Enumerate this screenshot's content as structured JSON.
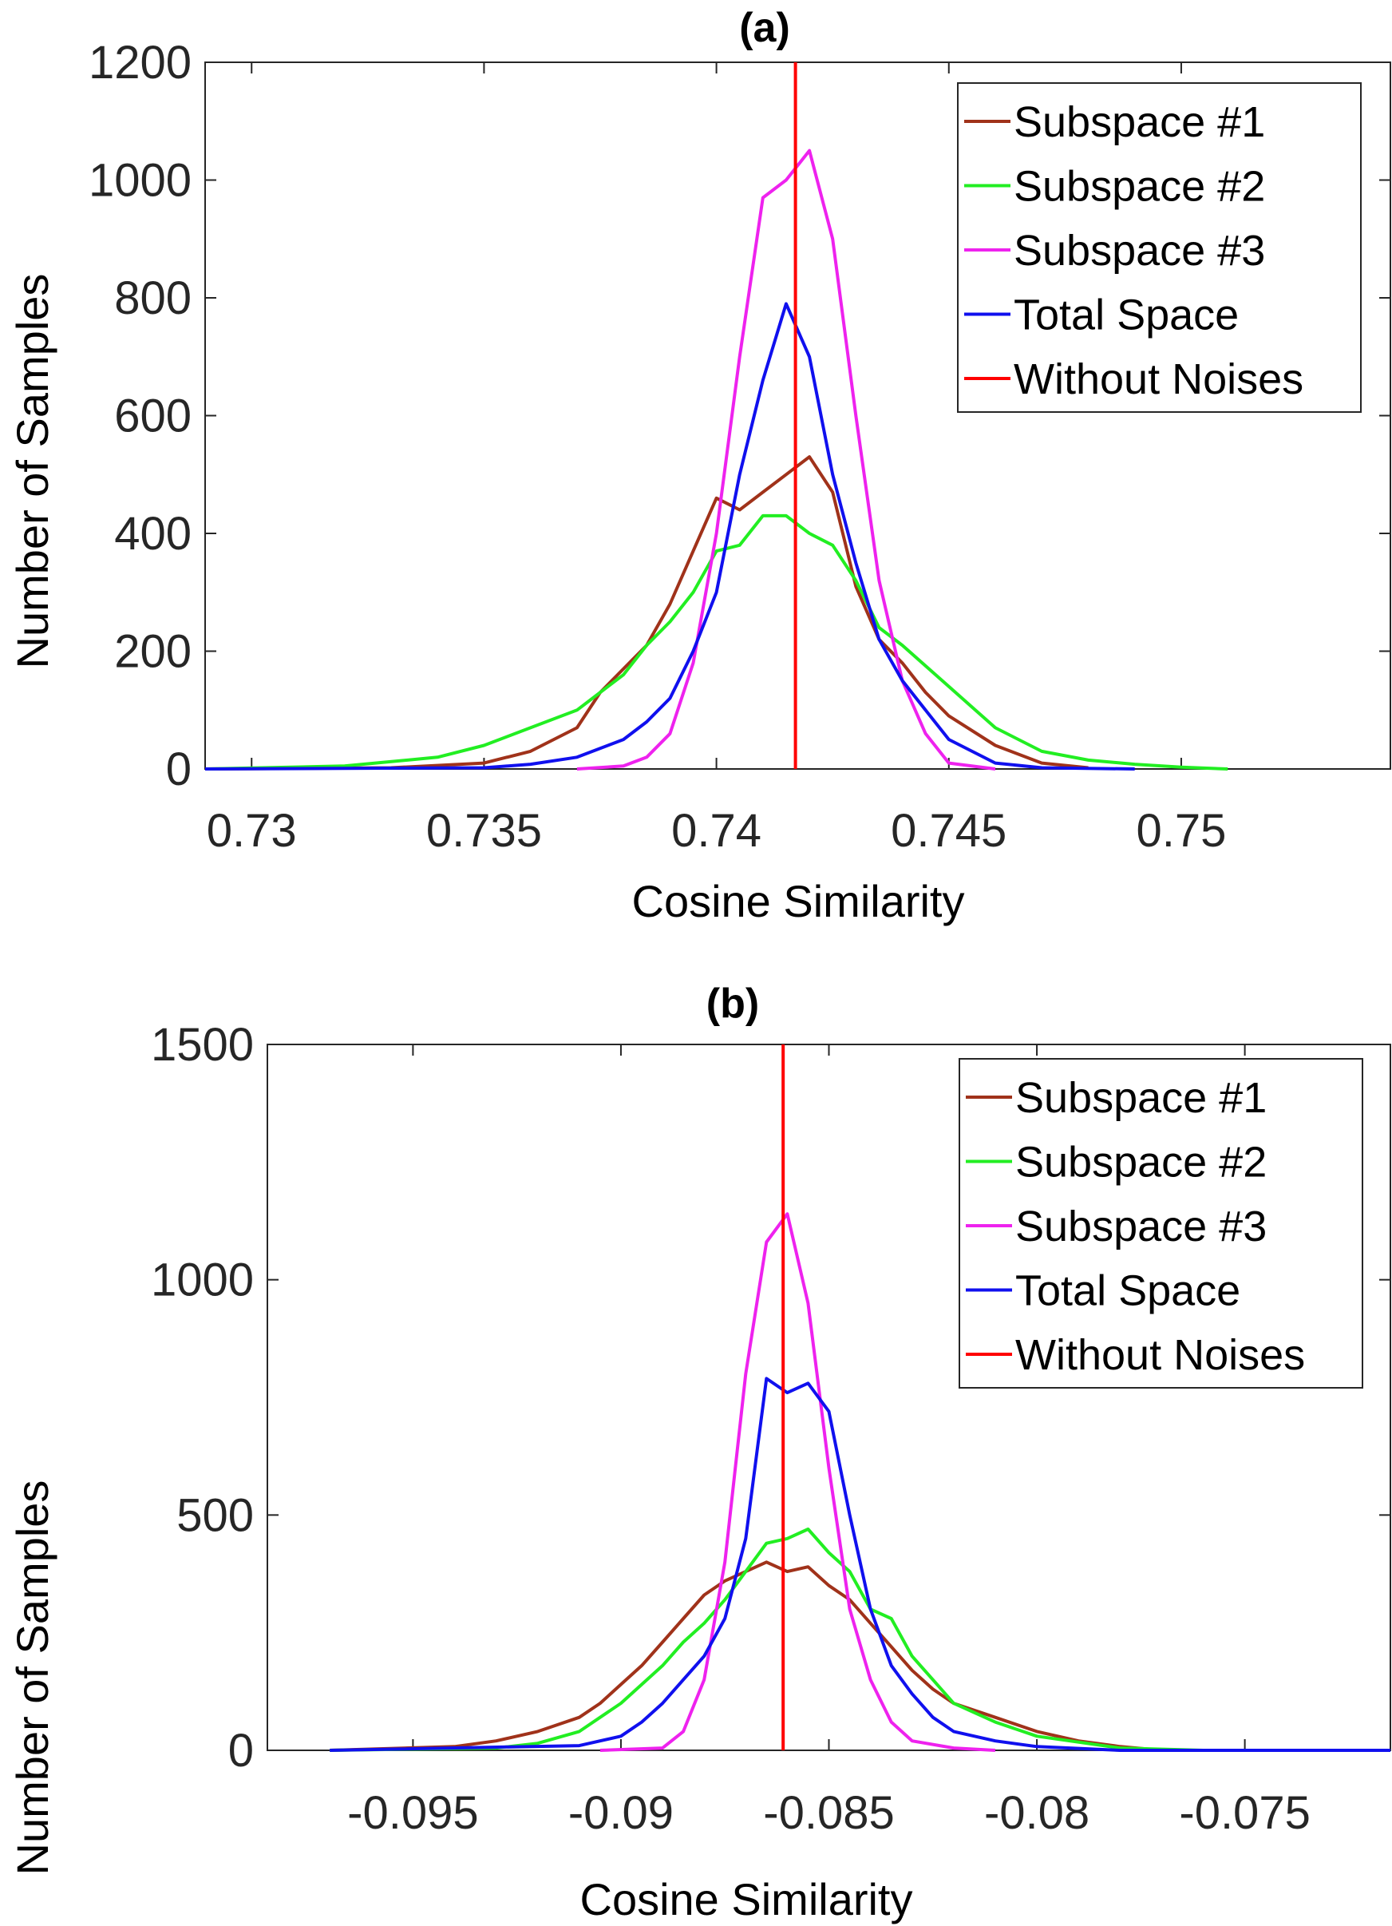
{
  "chart_data": [
    {
      "type": "line",
      "title": "(a)",
      "xlabel": "Cosine Similarity",
      "ylabel": "Number of Samples",
      "xlim": [
        0.729,
        0.7545
      ],
      "ylim": [
        0,
        1200
      ],
      "xticks": [
        0.73,
        0.735,
        0.74,
        0.745,
        0.75
      ],
      "xtick_labels": [
        "0.73",
        "0.735",
        "0.74",
        "0.745",
        "0.75"
      ],
      "yticks": [
        0,
        200,
        400,
        600,
        800,
        1000,
        1200
      ],
      "ytick_labels": [
        "0",
        "200",
        "400",
        "600",
        "800",
        "1000",
        "1200"
      ],
      "grid": false,
      "legend_position": "top-right",
      "reference_line": {
        "name": "Without Noises",
        "x": 0.7417,
        "color": "#ff0000"
      },
      "series": [
        {
          "name": "Subspace #1",
          "color": "#a0321a",
          "x": [
            0.729,
            0.733,
            0.735,
            0.736,
            0.737,
            0.7375,
            0.738,
            0.7385,
            0.739,
            0.7395,
            0.74,
            0.7405,
            0.741,
            0.7415,
            0.742,
            0.7425,
            0.743,
            0.7435,
            0.744,
            0.7445,
            0.745,
            0.746,
            0.747,
            0.748
          ],
          "values": [
            0,
            2,
            10,
            30,
            70,
            130,
            170,
            210,
            280,
            370,
            460,
            440,
            470,
            500,
            530,
            470,
            310,
            220,
            180,
            130,
            90,
            40,
            10,
            2
          ]
        },
        {
          "name": "Subspace #2",
          "color": "#22ee22",
          "x": [
            0.729,
            0.732,
            0.734,
            0.735,
            0.736,
            0.737,
            0.7375,
            0.738,
            0.7385,
            0.739,
            0.7395,
            0.74,
            0.7405,
            0.741,
            0.7415,
            0.742,
            0.7425,
            0.743,
            0.7435,
            0.744,
            0.745,
            0.746,
            0.747,
            0.748,
            0.749,
            0.75,
            0.751
          ],
          "values": [
            0,
            5,
            20,
            40,
            70,
            100,
            130,
            160,
            210,
            250,
            300,
            370,
            380,
            430,
            430,
            400,
            380,
            320,
            240,
            210,
            140,
            70,
            30,
            15,
            8,
            3,
            0
          ]
        },
        {
          "name": "Subspace #3",
          "color": "#ee22ee",
          "x": [
            0.737,
            0.738,
            0.7385,
            0.739,
            0.7395,
            0.74,
            0.7405,
            0.741,
            0.7415,
            0.742,
            0.7425,
            0.743,
            0.7435,
            0.744,
            0.7445,
            0.745,
            0.746
          ],
          "values": [
            0,
            5,
            20,
            60,
            180,
            400,
            700,
            970,
            1000,
            1050,
            900,
            600,
            320,
            150,
            60,
            10,
            0
          ]
        },
        {
          "name": "Total Space",
          "color": "#1010ee",
          "x": [
            0.729,
            0.735,
            0.736,
            0.737,
            0.738,
            0.7385,
            0.739,
            0.7395,
            0.74,
            0.7405,
            0.741,
            0.7415,
            0.742,
            0.7425,
            0.743,
            0.7435,
            0.744,
            0.7445,
            0.745,
            0.746,
            0.747,
            0.749
          ],
          "values": [
            0,
            2,
            8,
            20,
            50,
            80,
            120,
            200,
            300,
            500,
            660,
            790,
            700,
            500,
            350,
            220,
            150,
            100,
            50,
            10,
            2,
            0
          ]
        }
      ]
    },
    {
      "type": "line",
      "title": "(b)",
      "xlabel": "Cosine Similarity",
      "ylabel": "Number of Samples",
      "xlim": [
        -0.0985,
        -0.0715
      ],
      "ylim": [
        0,
        1500
      ],
      "xticks": [
        -0.095,
        -0.09,
        -0.085,
        -0.08,
        -0.075
      ],
      "xtick_labels": [
        "-0.095",
        "-0.09",
        "-0.085",
        "-0.08",
        "-0.075"
      ],
      "yticks": [
        0,
        500,
        1000,
        1500
      ],
      "ytick_labels": [
        "0",
        "500",
        "1000",
        "1500"
      ],
      "grid": false,
      "legend_position": "top-right",
      "reference_line": {
        "name": "Without Noises",
        "x": -0.0861,
        "color": "#ff0000"
      },
      "series": [
        {
          "name": "Subspace #1",
          "color": "#a0321a",
          "x": [
            -0.097,
            -0.094,
            -0.093,
            -0.092,
            -0.091,
            -0.0905,
            -0.09,
            -0.0895,
            -0.089,
            -0.0885,
            -0.088,
            -0.0875,
            -0.087,
            -0.0865,
            -0.086,
            -0.0855,
            -0.085,
            -0.0845,
            -0.084,
            -0.0835,
            -0.083,
            -0.0825,
            -0.082,
            -0.081,
            -0.08,
            -0.079,
            -0.078,
            -0.077
          ],
          "values": [
            0,
            8,
            20,
            40,
            70,
            100,
            140,
            180,
            230,
            280,
            330,
            360,
            380,
            400,
            380,
            390,
            350,
            320,
            270,
            220,
            170,
            130,
            100,
            70,
            40,
            20,
            8,
            0
          ]
        },
        {
          "name": "Subspace #2",
          "color": "#22ee22",
          "x": [
            -0.097,
            -0.093,
            -0.092,
            -0.091,
            -0.0905,
            -0.09,
            -0.0895,
            -0.089,
            -0.0885,
            -0.088,
            -0.0875,
            -0.087,
            -0.0865,
            -0.086,
            -0.0855,
            -0.085,
            -0.0845,
            -0.084,
            -0.0835,
            -0.083,
            -0.0825,
            -0.082,
            -0.081,
            -0.08,
            -0.078,
            -0.076
          ],
          "values": [
            0,
            5,
            15,
            40,
            70,
            100,
            140,
            180,
            230,
            270,
            320,
            380,
            440,
            450,
            470,
            420,
            380,
            300,
            280,
            200,
            150,
            100,
            60,
            30,
            5,
            0
          ]
        },
        {
          "name": "Subspace #3",
          "color": "#ee22ee",
          "x": [
            -0.0905,
            -0.089,
            -0.0885,
            -0.088,
            -0.0875,
            -0.087,
            -0.0865,
            -0.086,
            -0.0855,
            -0.085,
            -0.0845,
            -0.084,
            -0.0835,
            -0.083,
            -0.082,
            -0.081
          ],
          "values": [
            0,
            5,
            40,
            150,
            400,
            800,
            1080,
            1140,
            950,
            600,
            300,
            150,
            60,
            20,
            5,
            0
          ]
        },
        {
          "name": "Total Space",
          "color": "#1010ee",
          "x": [
            -0.097,
            -0.091,
            -0.09,
            -0.0895,
            -0.089,
            -0.0885,
            -0.088,
            -0.0875,
            -0.087,
            -0.0865,
            -0.086,
            -0.0855,
            -0.085,
            -0.0845,
            -0.084,
            -0.0835,
            -0.083,
            -0.0825,
            -0.082,
            -0.081,
            -0.08,
            -0.078,
            -0.0715
          ],
          "values": [
            0,
            10,
            30,
            60,
            100,
            150,
            200,
            280,
            450,
            790,
            760,
            780,
            720,
            500,
            300,
            180,
            120,
            70,
            40,
            20,
            8,
            0,
            0
          ]
        }
      ]
    }
  ]
}
